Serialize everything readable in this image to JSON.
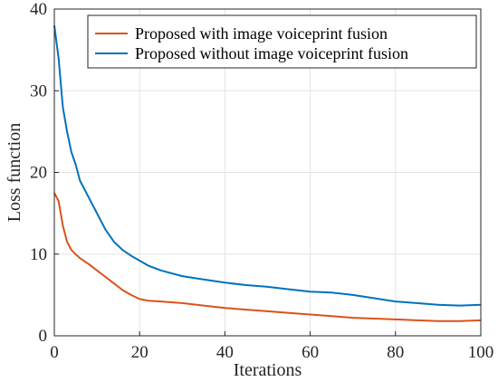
{
  "chart_data": {
    "type": "line",
    "title": "",
    "xlabel": "Iterations",
    "ylabel": "Loss function",
    "xlim": [
      0,
      100
    ],
    "ylim": [
      0,
      40
    ],
    "xticks": [
      0,
      20,
      40,
      60,
      80,
      100
    ],
    "yticks": [
      0,
      10,
      20,
      30,
      40
    ],
    "grid": true,
    "legend_position": "top-right",
    "series": [
      {
        "name": "Proposed with image voiceprint fusion",
        "color": "#D95319",
        "x": [
          0,
          1,
          2,
          3,
          4,
          5,
          6,
          8,
          10,
          12,
          14,
          16,
          18,
          20,
          22,
          25,
          30,
          35,
          40,
          45,
          50,
          55,
          60,
          65,
          70,
          75,
          80,
          85,
          90,
          95,
          100
        ],
        "y": [
          17.5,
          16.5,
          13.5,
          11.5,
          10.5,
          10.0,
          9.5,
          8.8,
          8.0,
          7.2,
          6.4,
          5.6,
          5.0,
          4.5,
          4.3,
          4.2,
          4.0,
          3.7,
          3.4,
          3.2,
          3.0,
          2.8,
          2.6,
          2.4,
          2.2,
          2.1,
          2.0,
          1.9,
          1.8,
          1.8,
          1.9
        ]
      },
      {
        "name": "Proposed without image voiceprint fusion",
        "color": "#0072BD",
        "x": [
          0,
          1,
          2,
          3,
          4,
          5,
          6,
          8,
          10,
          12,
          14,
          16,
          18,
          20,
          22,
          25,
          30,
          35,
          40,
          45,
          50,
          55,
          60,
          65,
          70,
          75,
          80,
          85,
          90,
          95,
          100
        ],
        "y": [
          38.0,
          34.0,
          28.0,
          25.0,
          22.5,
          21.0,
          19.0,
          17.0,
          15.0,
          13.0,
          11.5,
          10.5,
          9.8,
          9.2,
          8.6,
          8.0,
          7.3,
          6.9,
          6.5,
          6.2,
          6.0,
          5.7,
          5.4,
          5.3,
          5.0,
          4.6,
          4.2,
          4.0,
          3.8,
          3.7,
          3.8
        ]
      }
    ]
  }
}
